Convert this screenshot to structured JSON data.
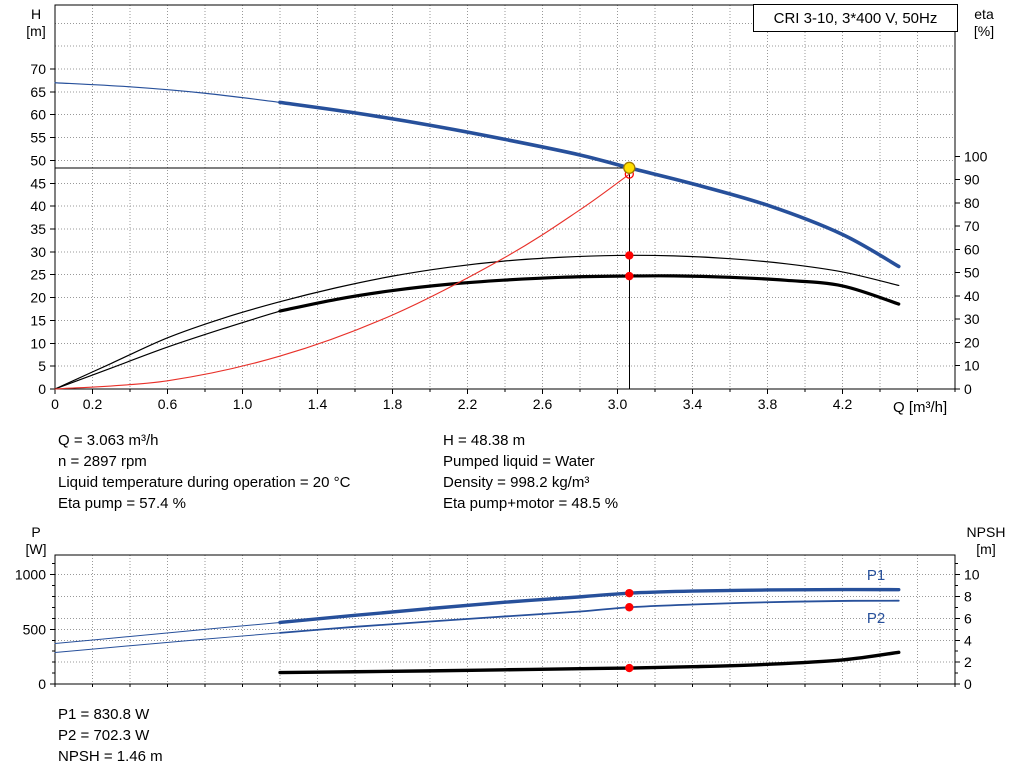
{
  "title_box": "CRI 3-10, 3*400 V, 50Hz",
  "axis_corner_labels": {
    "top_left": "H\n[m]",
    "top_right": "eta\n[%]",
    "bottom_left": "P\n[W]",
    "bottom_right": "NPSH\n[m]"
  },
  "x_axis_title": "Q [m³/h]",
  "annotations": {
    "mid_left": [
      "Q = 3.063 m³/h",
      "n = 2897 rpm",
      "Liquid temperature during operation = 20 °C",
      "Eta pump = 57.4 %"
    ],
    "mid_right": [
      "H = 48.38 m",
      "Pumped liquid = Water",
      "Density = 998.2 kg/m³",
      "Eta pump+motor = 48.5 %"
    ],
    "bottom": [
      "P1 = 830.8 W",
      "P2 = 702.3 W",
      "NPSH = 1.46 m"
    ]
  },
  "colors": {
    "blue": "#27509b",
    "black": "#000000",
    "red": "#e8312a",
    "marker_red": "#ff0000",
    "marker_yellow": "#ffdf00",
    "marker_yellow_rim": "#a07800",
    "grid": "#999999"
  },
  "chart_data": [
    {
      "type": "line",
      "name": "qh-efficiency-chart",
      "x": {
        "min": 0,
        "max": 4.8,
        "grid_step": 0.2,
        "tick_labels": [
          [
            0,
            "0"
          ],
          [
            0.2,
            "0.2"
          ],
          [
            0.6,
            "0.6"
          ],
          [
            1,
            "1.0"
          ],
          [
            1.4,
            "1.4"
          ],
          [
            1.8,
            "1.8"
          ],
          [
            2.2,
            "2.2"
          ],
          [
            2.6,
            "2.6"
          ],
          [
            3,
            "3.0"
          ],
          [
            3.4,
            "3.4"
          ],
          [
            3.8,
            "3.8"
          ],
          [
            4.2,
            "4.2"
          ]
        ]
      },
      "y_left": {
        "min": 0,
        "max": 84,
        "grid_step": 5,
        "tick_step": 5,
        "tick_max": 70,
        "minor_step": null
      },
      "y_right": {
        "min": 0,
        "max": 165,
        "grid_step": null,
        "tick_step": 10,
        "tick_max": 100,
        "minor_step": null
      },
      "series": [
        {
          "id": "h-curve",
          "name": "H (head)",
          "axis": "left",
          "color": "blue",
          "thin": 1.2,
          "thick": 3.6,
          "split": 1.2,
          "points": [
            [
              0,
              67
            ],
            [
              0.4,
              66.1
            ],
            [
              0.8,
              64.7
            ],
            [
              1.2,
              62.7
            ],
            [
              1.6,
              60.4
            ],
            [
              2,
              57.7
            ],
            [
              2.4,
              54.6
            ],
            [
              2.8,
              51.2
            ],
            [
              3.063,
              48.38
            ],
            [
              3.4,
              44.9
            ],
            [
              3.8,
              40.2
            ],
            [
              4.2,
              33.8
            ],
            [
              4.5,
              26.8
            ]
          ]
        },
        {
          "id": "eta-pump-curve",
          "name": "Eta pump",
          "axis": "right",
          "color": "black",
          "thin": 1.2,
          "thick": 1.2,
          "split": null,
          "points": [
            [
              0,
              0
            ],
            [
              0.3,
              11
            ],
            [
              0.6,
              22
            ],
            [
              0.9,
              30.5
            ],
            [
              1.2,
              37.5
            ],
            [
              1.5,
              43.5
            ],
            [
              1.8,
              48.5
            ],
            [
              2.1,
              52.3
            ],
            [
              2.4,
              55
            ],
            [
              2.7,
              56.6
            ],
            [
              3.0,
              57.4
            ],
            [
              3.3,
              57.2
            ],
            [
              3.6,
              56
            ],
            [
              3.9,
              53.8
            ],
            [
              4.2,
              50.3
            ],
            [
              4.5,
              44.5
            ]
          ]
        },
        {
          "id": "eta-pump-motor-curve",
          "name": "Eta pump+motor",
          "axis": "right",
          "color": "black",
          "thin": 1.2,
          "thick": 3.2,
          "split": 1.2,
          "points": [
            [
              0,
              0
            ],
            [
              0.3,
              9
            ],
            [
              0.6,
              18
            ],
            [
              0.9,
              26
            ],
            [
              1.2,
              33.5
            ],
            [
              1.5,
              38.5
            ],
            [
              1.8,
              42.3
            ],
            [
              2.1,
              45
            ],
            [
              2.4,
              46.8
            ],
            [
              2.7,
              48
            ],
            [
              3.0,
              48.5
            ],
            [
              3.3,
              48.6
            ],
            [
              3.6,
              48
            ],
            [
              3.9,
              46.7
            ],
            [
              4.2,
              44.3
            ],
            [
              4.5,
              36.5
            ]
          ]
        },
        {
          "id": "system-curve",
          "name": "System curve",
          "axis": "left",
          "color": "red",
          "thin": 1.1,
          "thick": 1.1,
          "split": null,
          "points": [
            [
              0,
              0
            ],
            [
              0.6,
              1.8
            ],
            [
              1.2,
              7.2
            ],
            [
              1.8,
              16.2
            ],
            [
              2.4,
              28.8
            ],
            [
              2.8,
              39.2
            ],
            [
              3.063,
              47
            ]
          ]
        }
      ],
      "ref_lines": [
        {
          "type": "h",
          "axis": "left",
          "value": 48.38,
          "q1": 0,
          "q2": 3.063
        },
        {
          "type": "v",
          "axis": "left",
          "q": 3.063,
          "v1": 0,
          "v2": 48.38
        }
      ],
      "markers": [
        {
          "q": 3.063,
          "v": 47,
          "axis": "left",
          "kind": "open-red"
        },
        {
          "q": 3.063,
          "v": 48.38,
          "axis": "left",
          "kind": "duty"
        },
        {
          "q": 3.063,
          "v": 57.4,
          "axis": "right",
          "kind": "red"
        },
        {
          "q": 3.063,
          "v": 48.5,
          "axis": "right",
          "kind": "red"
        }
      ]
    },
    {
      "type": "line",
      "name": "power-npsh-chart",
      "x": {
        "min": 0,
        "max": 4.8,
        "grid_step": 0.2,
        "tick_labels": []
      },
      "y_left": {
        "min": 0,
        "max": 1180,
        "grid_step": 500,
        "tick_step": 500,
        "tick_max": 1000,
        "minor_step": 100
      },
      "y_right": {
        "min": 0,
        "max": 11.8,
        "grid_step": 2,
        "tick_step": 2,
        "tick_max": 10,
        "minor_step": 1
      },
      "series": [
        {
          "id": "p1-curve",
          "name": "P1",
          "axis": "left",
          "color": "blue",
          "thin": 1,
          "thick": 3.4,
          "split": 1.2,
          "label": "P1",
          "label_q": 4.33,
          "label_v": 950,
          "points": [
            [
              0,
              370
            ],
            [
              0.4,
              435
            ],
            [
              0.8,
              500
            ],
            [
              1.2,
              563
            ],
            [
              1.6,
              628
            ],
            [
              2,
              690
            ],
            [
              2.4,
              748
            ],
            [
              2.8,
              797
            ],
            [
              3.063,
              831
            ],
            [
              3.4,
              850
            ],
            [
              3.8,
              860
            ],
            [
              4.2,
              864
            ],
            [
              4.5,
              863
            ]
          ]
        },
        {
          "id": "p2-curve",
          "name": "P2",
          "axis": "left",
          "color": "blue",
          "thin": 1,
          "thick": 1.8,
          "split": 1.2,
          "label": "P2",
          "label_q": 4.33,
          "label_v": 560,
          "points": [
            [
              0,
              288
            ],
            [
              0.4,
              350
            ],
            [
              0.8,
              410
            ],
            [
              1.2,
              468
            ],
            [
              1.6,
              523
            ],
            [
              2,
              572
            ],
            [
              2.4,
              618
            ],
            [
              2.8,
              663
            ],
            [
              3.063,
              702
            ],
            [
              3.4,
              727
            ],
            [
              3.8,
              748
            ],
            [
              4.2,
              760
            ],
            [
              4.5,
              762
            ]
          ]
        },
        {
          "id": "npsh-curve",
          "name": "NPSH",
          "axis": "right",
          "color": "black",
          "thin": 3.4,
          "thick": 3.4,
          "split": null,
          "points": [
            [
              1.2,
              1.05
            ],
            [
              1.6,
              1.12
            ],
            [
              2,
              1.2
            ],
            [
              2.4,
              1.3
            ],
            [
              2.8,
              1.4
            ],
            [
              3.063,
              1.46
            ],
            [
              3.4,
              1.58
            ],
            [
              3.8,
              1.8
            ],
            [
              4.2,
              2.2
            ],
            [
              4.5,
              2.9
            ]
          ]
        }
      ],
      "ref_lines": [],
      "markers": [
        {
          "q": 3.063,
          "v": 831,
          "axis": "left",
          "kind": "red"
        },
        {
          "q": 3.063,
          "v": 702,
          "axis": "left",
          "kind": "red"
        },
        {
          "q": 3.063,
          "v": 1.46,
          "axis": "right",
          "kind": "red"
        }
      ]
    }
  ]
}
